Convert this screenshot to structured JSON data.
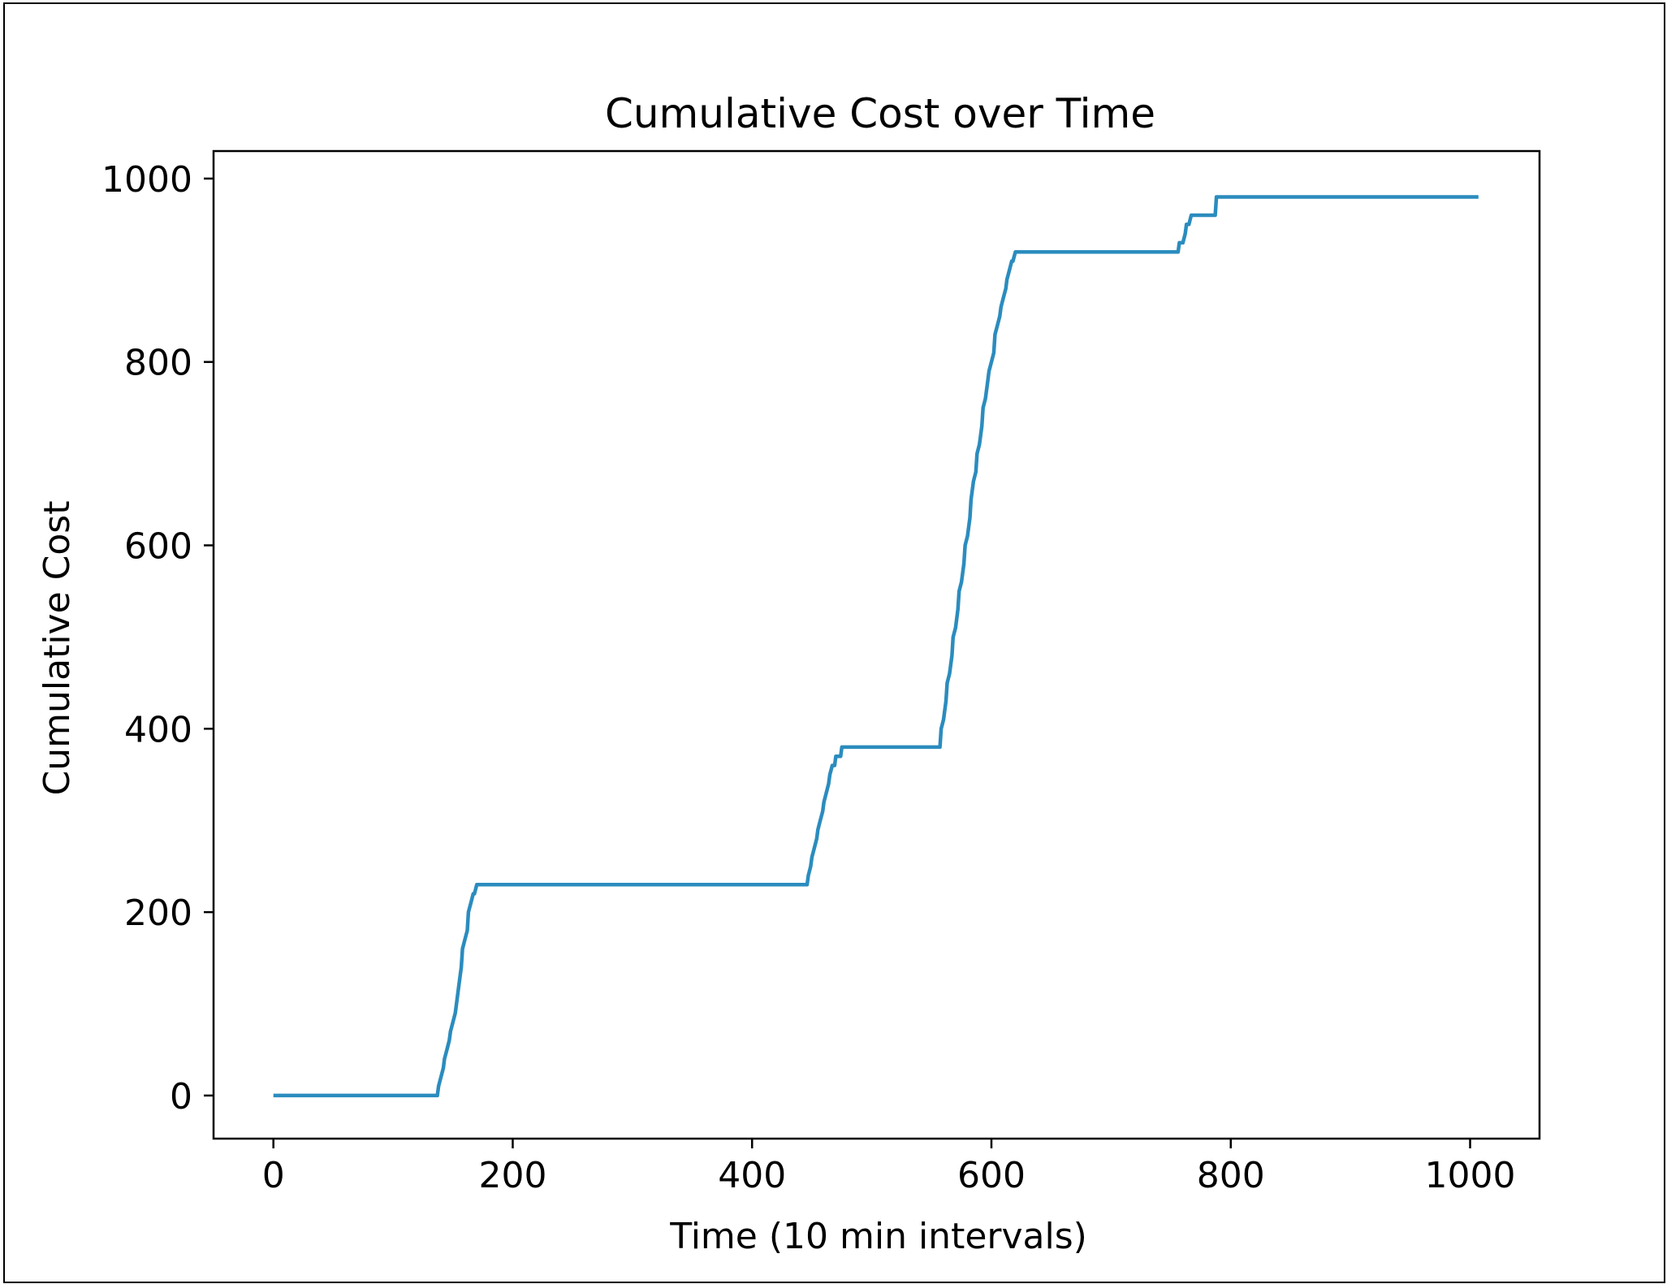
{
  "chart_data": {
    "type": "line",
    "title": "Cumulative Cost over Time",
    "xlabel": "Time (10 min intervals)",
    "ylabel": "Cumulative Cost",
    "xlim": [
      -50,
      1058
    ],
    "ylim": [
      -47,
      1030
    ],
    "xticks": [
      0,
      200,
      400,
      600,
      800,
      1000
    ],
    "yticks": [
      0,
      200,
      400,
      600,
      800,
      1000
    ],
    "xtick_labels": [
      "0",
      "200",
      "400",
      "600",
      "800",
      "1000"
    ],
    "ytick_labels": [
      "0",
      "200",
      "400",
      "600",
      "800",
      "1000"
    ],
    "grid": false,
    "line_color": "#2b8cbe",
    "series": [
      {
        "x": [
          0,
          137,
          138,
          140,
          142,
          143,
          145,
          147,
          148,
          150,
          152,
          153,
          155,
          157,
          158,
          160,
          162,
          163,
          165,
          167,
          168,
          170,
          173,
          175,
          446,
          447,
          449,
          450,
          452,
          454,
          455,
          457,
          459,
          460,
          462,
          464,
          465,
          467,
          469,
          470,
          472,
          474,
          475,
          477,
          478,
          480,
          483,
          484,
          557,
          558,
          560,
          562,
          563,
          565,
          567,
          568,
          570,
          572,
          573,
          575,
          577,
          578,
          580,
          582,
          583,
          585,
          587,
          588,
          590,
          592,
          593,
          595,
          597,
          598,
          600,
          602,
          603,
          605,
          607,
          608,
          610,
          612,
          613,
          615,
          617,
          618,
          620,
          622,
          623,
          625,
          627,
          628,
          630,
          632,
          633,
          756,
          757,
          760,
          762,
          763,
          765,
          767,
          768,
          770,
          787,
          788,
          790,
          1007
        ],
        "y": [
          0,
          0,
          10,
          20,
          30,
          40,
          50,
          60,
          70,
          80,
          90,
          100,
          120,
          140,
          160,
          170,
          180,
          200,
          210,
          220,
          220,
          230,
          230,
          230,
          230,
          240,
          250,
          260,
          270,
          280,
          290,
          300,
          310,
          320,
          330,
          340,
          350,
          360,
          360,
          370,
          370,
          370,
          380,
          380,
          380,
          380,
          380,
          380,
          380,
          400,
          410,
          430,
          450,
          460,
          480,
          500,
          510,
          530,
          550,
          560,
          580,
          600,
          610,
          630,
          650,
          670,
          680,
          700,
          710,
          730,
          750,
          760,
          780,
          790,
          800,
          810,
          830,
          840,
          850,
          860,
          870,
          880,
          890,
          900,
          910,
          910,
          920,
          920,
          920,
          920,
          920,
          920,
          920,
          920,
          920,
          920,
          930,
          930,
          940,
          950,
          950,
          960,
          960,
          960,
          960,
          980,
          980,
          980
        ]
      }
    ]
  }
}
